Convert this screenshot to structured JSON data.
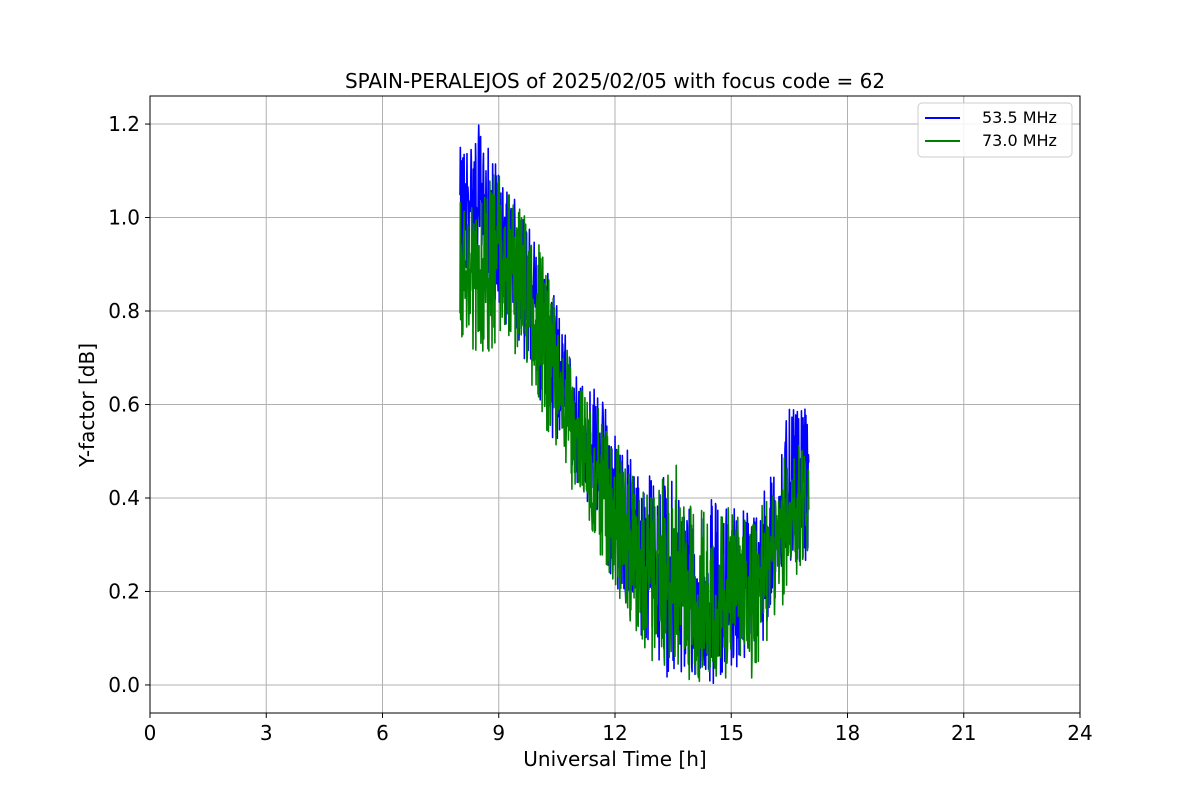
{
  "chart_data": {
    "type": "line",
    "title": "SPAIN-PERALEJOS of 2025/02/05 with focus code = 62",
    "xlabel": "Universal Time [h]",
    "ylabel": "Y-factor [dB]",
    "xlim": [
      0,
      24
    ],
    "ylim": [
      -0.06,
      1.26
    ],
    "x_ticks": [
      0,
      3,
      6,
      9,
      12,
      15,
      18,
      21,
      24
    ],
    "y_ticks": [
      0.0,
      0.2,
      0.4,
      0.6,
      0.8,
      1.0,
      1.2
    ],
    "x_tick_labels": [
      "0",
      "3",
      "6",
      "9",
      "12",
      "15",
      "18",
      "21",
      "24"
    ],
    "y_tick_labels": [
      "0.0",
      "0.2",
      "0.4",
      "0.6",
      "0.8",
      "1.0",
      "1.2"
    ],
    "grid": true,
    "legend_position": "top-right",
    "series": [
      {
        "name": "53.5 MHz",
        "color": "#0000ff",
        "x": [
          8.0,
          8.5,
          9.0,
          9.5,
          10.0,
          10.5,
          11.0,
          11.5,
          12.0,
          12.5,
          13.0,
          13.5,
          14.0,
          14.5,
          15.0,
          15.5,
          16.0,
          16.5,
          17.0
        ],
        "y": [
          1.03,
          1.04,
          0.95,
          0.89,
          0.8,
          0.68,
          0.56,
          0.49,
          0.41,
          0.3,
          0.25,
          0.21,
          0.18,
          0.17,
          0.18,
          0.22,
          0.28,
          0.42,
          0.47
        ],
        "y_min": [
          0.85,
          0.88,
          0.8,
          0.72,
          0.62,
          0.5,
          0.42,
          0.33,
          0.2,
          0.12,
          0.05,
          0.0,
          0.0,
          0.0,
          0.03,
          0.05,
          0.12,
          0.25,
          0.25
        ],
        "y_max": [
          1.15,
          1.2,
          1.1,
          1.03,
          0.95,
          0.82,
          0.67,
          0.64,
          0.57,
          0.48,
          0.45,
          0.45,
          0.4,
          0.4,
          0.4,
          0.38,
          0.45,
          0.59,
          0.59
        ]
      },
      {
        "name": "73.0 MHz",
        "color": "#008000",
        "x": [
          8.0,
          8.5,
          9.0,
          9.5,
          10.0,
          10.5,
          11.0,
          11.5,
          12.0,
          12.5,
          13.0,
          13.5,
          14.0,
          14.5,
          15.0,
          15.5,
          16.0,
          16.5,
          17.0
        ],
        "y": [
          0.88,
          0.88,
          0.91,
          0.86,
          0.8,
          0.66,
          0.54,
          0.46,
          0.38,
          0.28,
          0.22,
          0.2,
          0.18,
          0.17,
          0.18,
          0.21,
          0.26,
          0.36,
          0.42
        ],
        "y_min": [
          0.74,
          0.7,
          0.72,
          0.7,
          0.6,
          0.48,
          0.4,
          0.3,
          0.2,
          0.1,
          0.04,
          0.04,
          0.0,
          0.0,
          0.02,
          0.0,
          0.1,
          0.2,
          0.26
        ],
        "y_max": [
          1.05,
          1.02,
          1.13,
          1.03,
          0.98,
          0.8,
          0.65,
          0.6,
          0.54,
          0.44,
          0.4,
          0.49,
          0.38,
          0.4,
          0.38,
          0.36,
          0.4,
          0.52,
          0.57
        ]
      }
    ]
  }
}
